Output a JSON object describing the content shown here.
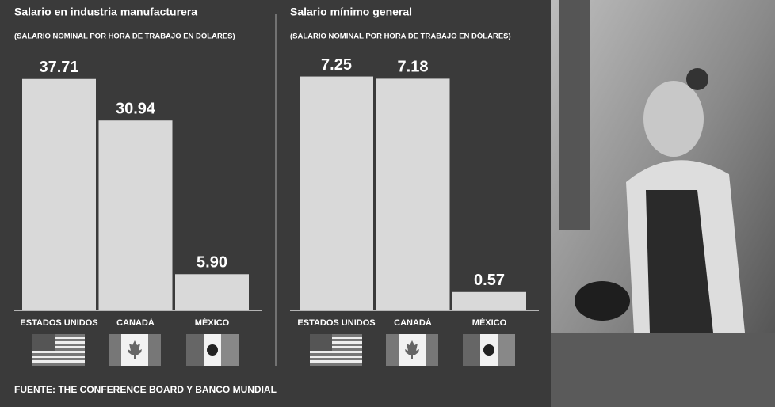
{
  "chart_data": [
    {
      "type": "bar",
      "title": "Salario en industria manufacturera",
      "subtitle": "(SALARIO NOMINAL POR HORA DE TRABAJO EN DÓLARES)",
      "categories": [
        "ESTADOS UNIDOS",
        "CANADÁ",
        "MÉXICO"
      ],
      "values": [
        37.71,
        30.94,
        5.9
      ],
      "value_labels": [
        "37.71",
        "30.94",
        "5.90"
      ],
      "color": "#d9d9d9",
      "ylim": [
        0,
        40
      ]
    },
    {
      "type": "bar",
      "title": "Salario mínimo general",
      "subtitle": "(SALARIO NOMINAL POR HORA DE TRABAJO EN DÓLARES)",
      "categories": [
        "ESTADOS UNIDOS",
        "CANADÁ",
        "MÉXICO"
      ],
      "values": [
        7.25,
        7.18,
        0.57
      ],
      "value_labels": [
        "7.25",
        "7.18",
        "0.57"
      ],
      "color": "#d9d9d9",
      "ylim": [
        0,
        8
      ]
    }
  ],
  "source": "FUENTE: THE CONFERENCE BOARD Y BANCO MUNDIAL"
}
